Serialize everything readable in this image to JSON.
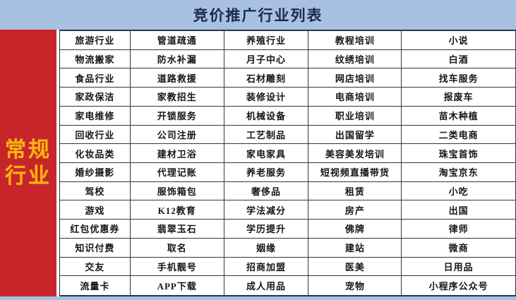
{
  "header": {
    "title": "竞价推广行业列表"
  },
  "sidebar": {
    "label_lines": [
      "常规",
      "行业"
    ],
    "background_color": "#c8252a",
    "text_color": "#f9b410"
  },
  "page": {
    "background_color": "#a8c1e0"
  },
  "table": {
    "rows": 14,
    "cols": 5,
    "columns": [
      [
        "旅游行业",
        "物流搬家",
        "食品行业",
        "家政保洁",
        "家电维修",
        "回收行业",
        "化妆品类",
        "婚纱摄影",
        "驾校",
        "游戏",
        "红包优惠券",
        "知识付费",
        "交友",
        "流量卡"
      ],
      [
        "管道疏通",
        "防水补漏",
        "道路救援",
        "家教招生",
        "开锁服务",
        "公司注册",
        "建材卫浴",
        "代理记账",
        "服饰箱包",
        "K12教育",
        "翡翠玉石",
        "取名",
        "手机靓号",
        "APP下载"
      ],
      [
        "养殖行业",
        "月子中心",
        "石材雕刻",
        "装修设计",
        "机械设备",
        "工艺制品",
        "家电家具",
        "养老服务",
        "奢侈品",
        "学法减分",
        "学历提升",
        "姻缘",
        "招商加盟",
        "成人用品"
      ],
      [
        "教程培训",
        "纹绣培训",
        "网店培训",
        "电商培训",
        "职业培训",
        "出国留学",
        "美容美发培训",
        "短视频直播带货",
        "租赁",
        "房产",
        "佛牌",
        "建站",
        "医美",
        "宠物"
      ],
      [
        "小说",
        "白酒",
        "找车服务",
        "报废车",
        "苗木种植",
        "二类电商",
        "珠宝首饰",
        "淘宝京东",
        "小吃",
        "出国",
        "律师",
        "微商",
        "日用品",
        "小程序公众号"
      ]
    ]
  }
}
